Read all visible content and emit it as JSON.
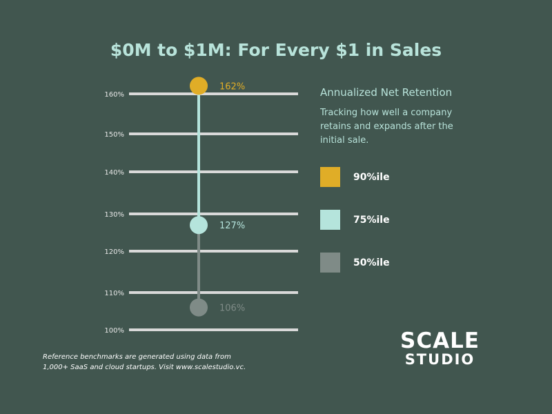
{
  "chart_data": {
    "type": "dot-range",
    "title": "$0M to $1M: For Every $1 in Sales",
    "yticks": [
      "160%",
      "150%",
      "140%",
      "130%",
      "120%",
      "110%",
      "100%"
    ],
    "ytick_values": [
      160,
      150,
      140,
      130,
      120,
      110,
      100
    ],
    "ylim": [
      100,
      160
    ],
    "series": [
      {
        "name": "90%ile",
        "value": 162,
        "label": "162%",
        "color": "#e0ad27"
      },
      {
        "name": "75%ile",
        "value": 127,
        "label": "127%",
        "color": "#b5e4dc"
      },
      {
        "name": "50%ile",
        "value": 106,
        "label": "106%",
        "color": "#7f8b87"
      }
    ],
    "gridline_color": "#d9d9d9"
  },
  "legend": {
    "title": "Annualized Net Retention",
    "description": "Tracking how well a company retains  and expands after the initial sale."
  },
  "logo": {
    "line1": "SCALE",
    "line2": "STUDIO"
  },
  "footnote": {
    "line1": "Reference benchmarks are generated using data from",
    "line2": "1,000+ SaaS and cloud startups. Visit www.scalestudio.vc."
  }
}
